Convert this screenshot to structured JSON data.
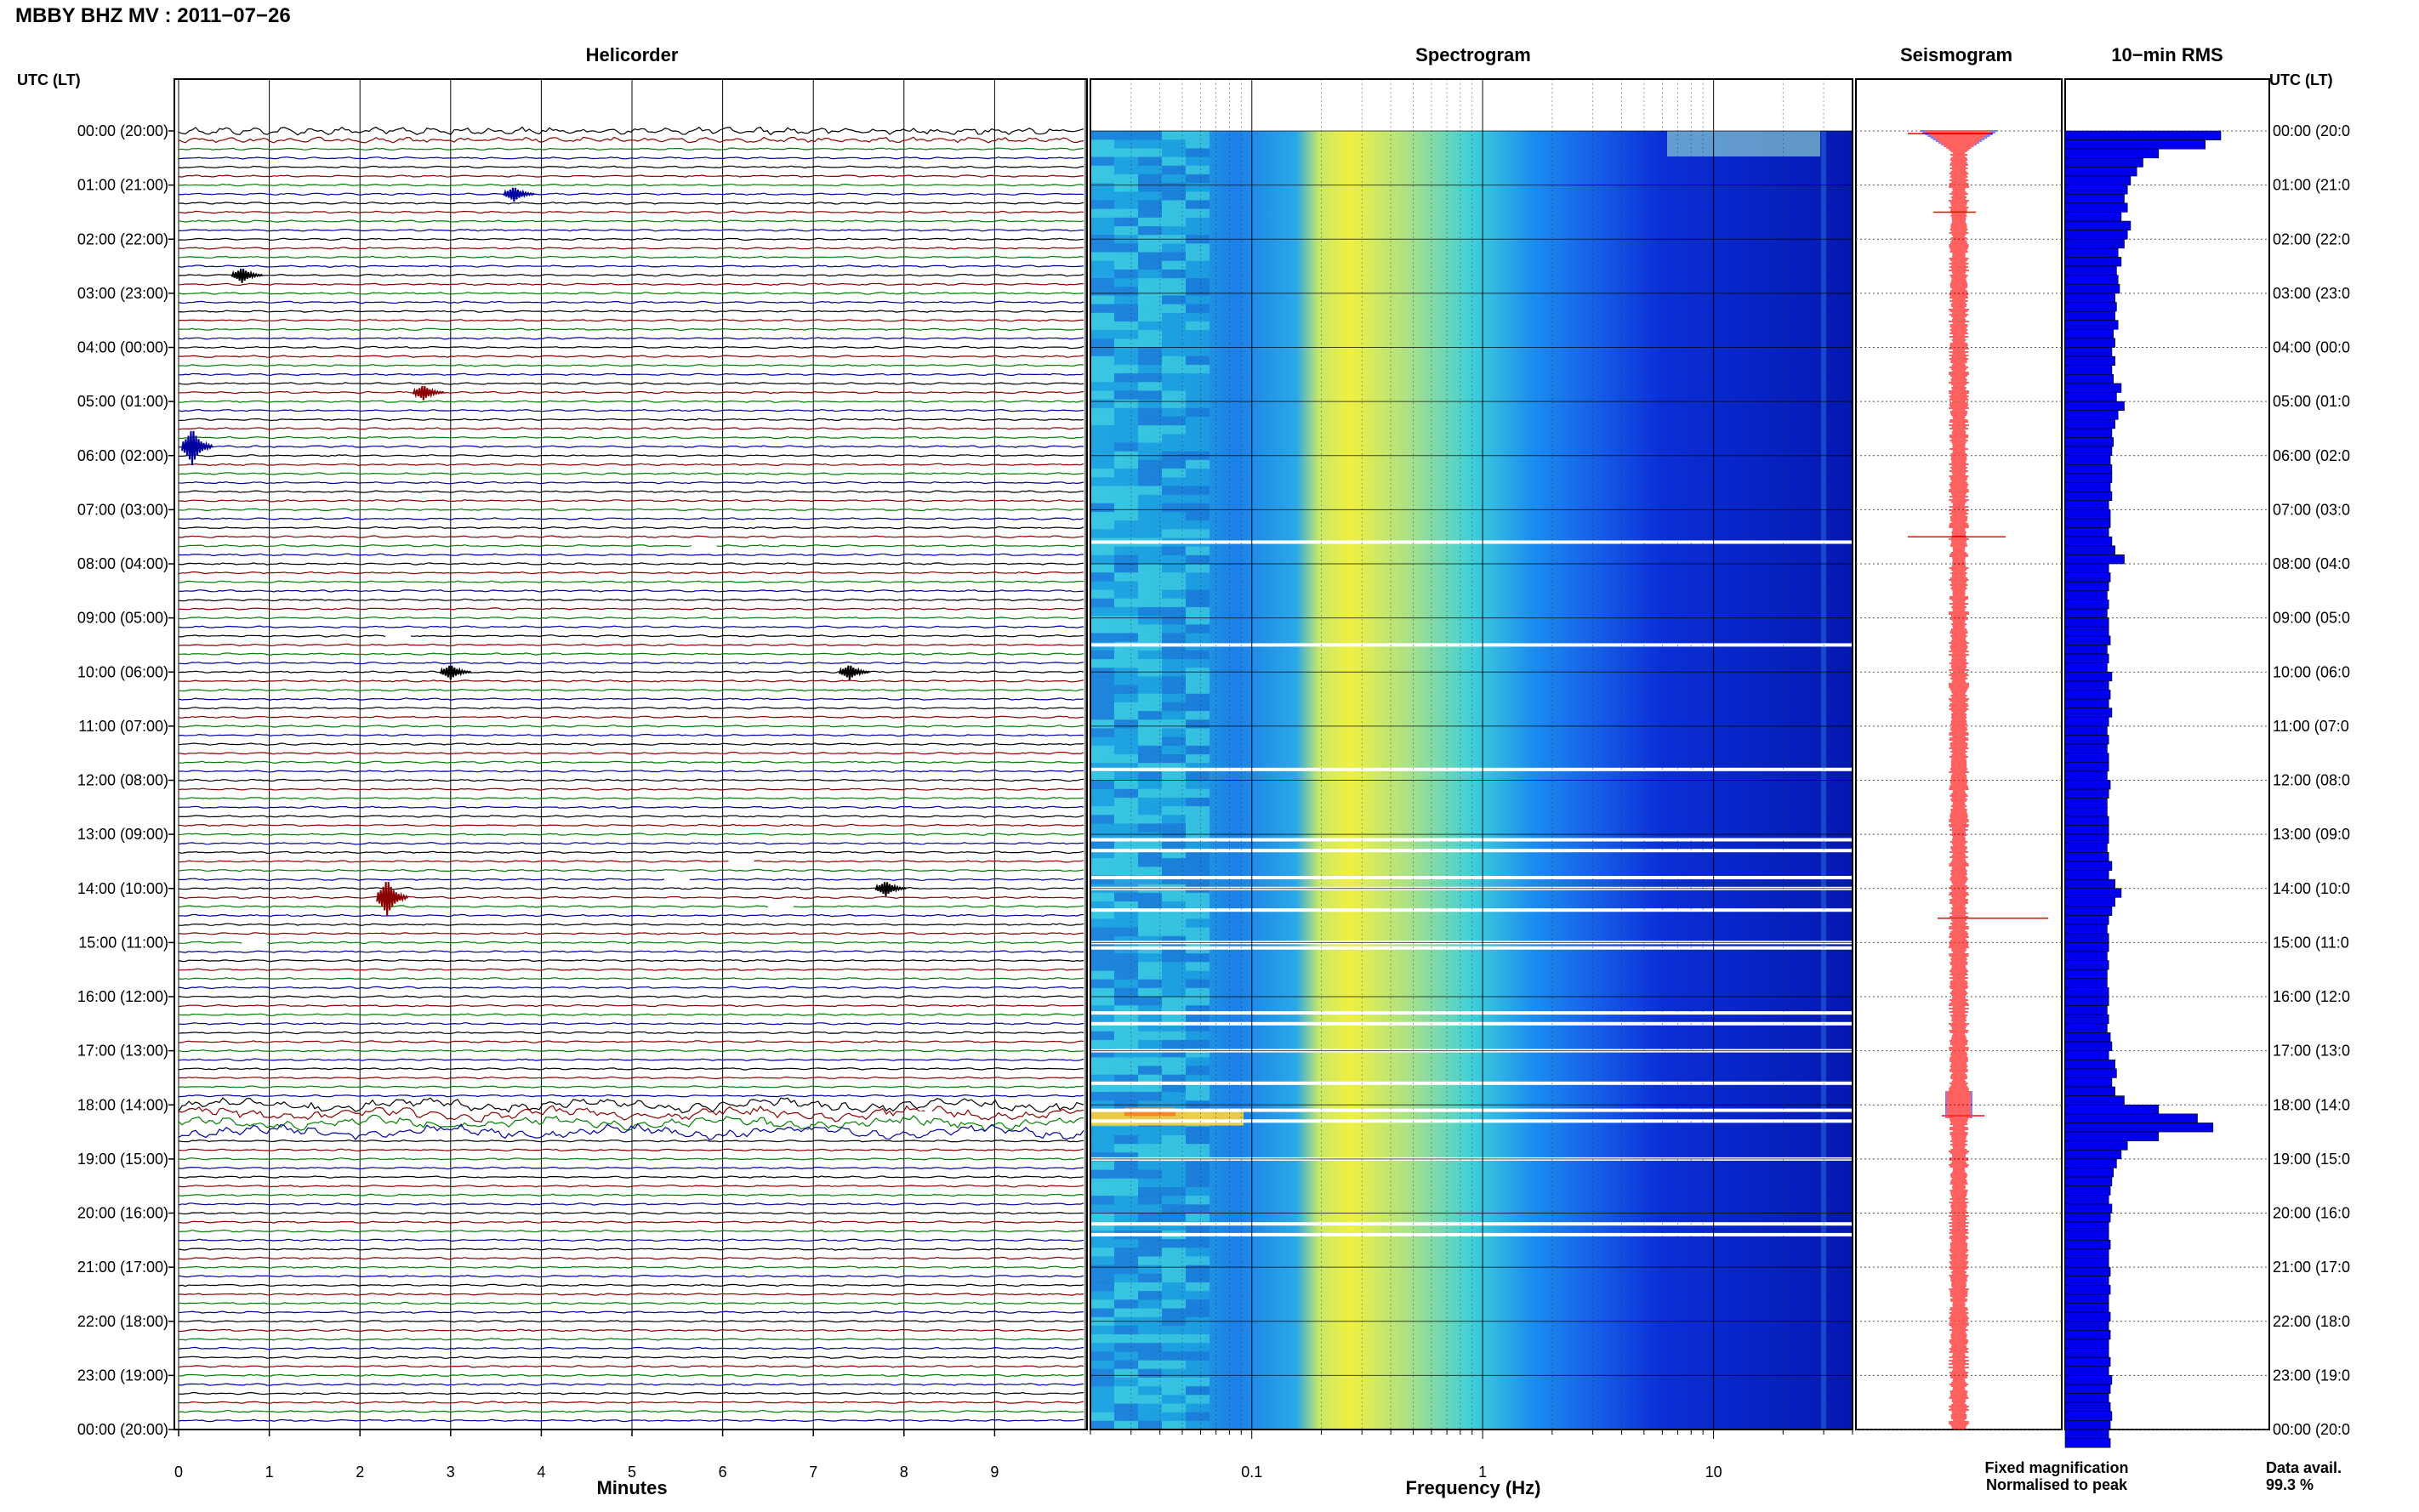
{
  "header": {
    "title": "MBBY BHZ MV : 2011−07−26",
    "utc_label_left": "UTC (LT)",
    "utc_label_right": "UTC (LT)"
  },
  "panels": {
    "helicorder": "Helicorder",
    "spectrogram": "Spectrogram",
    "seismogram": "Seismogram",
    "rms": "10−min RMS"
  },
  "time_labels": [
    "00:00 (20:00)",
    "01:00 (21:00)",
    "02:00 (22:00)",
    "03:00 (23:00)",
    "04:00 (00:00)",
    "05:00 (01:00)",
    "06:00 (02:00)",
    "07:00 (03:00)",
    "08:00 (04:00)",
    "09:00 (05:00)",
    "10:00 (06:00)",
    "11:00 (07:00)",
    "12:00 (08:00)",
    "13:00 (09:00)",
    "14:00 (10:00)",
    "15:00 (11:00)",
    "16:00 (12:00)",
    "17:00 (13:00)",
    "18:00 (14:00)",
    "19:00 (15:00)",
    "20:00 (16:00)",
    "21:00 (17:00)",
    "22:00 (18:00)",
    "23:00 (19:00)",
    "00:00 (20:00)"
  ],
  "time_labels_right": [
    "00:00 (20:0",
    "01:00 (21:0",
    "02:00 (22:0",
    "03:00 (23:0",
    "04:00 (00:0",
    "05:00 (01:0",
    "06:00 (02:0",
    "07:00 (03:0",
    "08:00 (04:0",
    "09:00 (05:0",
    "10:00 (06:0",
    "11:00 (07:0",
    "12:00 (08:0",
    "13:00 (09:0",
    "14:00 (10:0",
    "15:00 (11:0",
    "16:00 (12:0",
    "17:00 (13:0",
    "18:00 (14:0",
    "19:00 (15:0",
    "20:00 (16:0",
    "21:00 (17:0",
    "22:00 (18:0",
    "23:00 (19:0",
    "00:00 (20:0"
  ],
  "legend": {
    "fixed": "Fixed magnification",
    "normalised": "Normalised to peak",
    "fixed_color": "#0000ff",
    "normalised_color": "#ff0000"
  },
  "data_avail": {
    "label": "Data avail.",
    "value": "99.3 %"
  },
  "chart_data": [
    {
      "type": "line",
      "title": "Helicorder",
      "xlabel": "Minutes",
      "x_ticks": [
        "0",
        "1",
        "2",
        "3",
        "4",
        "5",
        "6",
        "7",
        "8",
        "9"
      ],
      "xlim": [
        0,
        10
      ],
      "ylabel": "UTC (LT)",
      "traces_per_hour": 6,
      "trace_colors": [
        "#000000",
        "#8b0000",
        "#008000",
        "#0000a0"
      ],
      "events": [
        {
          "trace": 7,
          "minute": 3.7
        },
        {
          "trace": 16,
          "minute": 0.7
        },
        {
          "trace": 29,
          "minute": 2.7
        },
        {
          "trace": 35,
          "minute": 0.15
        },
        {
          "trace": 60,
          "minute": 3.0
        },
        {
          "trace": 60,
          "minute": 7.4
        },
        {
          "trace": 84,
          "minute": 7.8
        },
        {
          "trace": 85,
          "minute": 2.3
        }
      ],
      "quiet_gap_hours": [
        7.6,
        9.3,
        13.5,
        13.8,
        14.3,
        15.0,
        18.2
      ]
    },
    {
      "type": "heatmap",
      "title": "Spectrogram",
      "xlabel": "Frequency (Hz)",
      "x_ticks": [
        "0.1",
        "1",
        "10"
      ],
      "x_scale": "log",
      "xlim": [
        0.02,
        40
      ],
      "colormap": [
        "#00008b",
        "#0000ff",
        "#0080ff",
        "#00ffff",
        "#80ff80",
        "#ffff00",
        "#ff8000"
      ],
      "energy_peak_hz": [
        0.2,
        0.5
      ],
      "data_gap_hours": [
        7.6,
        9.5,
        11.8,
        13.1,
        13.3,
        13.8,
        14.0,
        14.4,
        15.0,
        15.1,
        16.3,
        16.5,
        17.0,
        17.6,
        18.1,
        18.3,
        19.0,
        20.2,
        20.4
      ]
    },
    {
      "type": "line",
      "title": "Seismogram",
      "series": [
        {
          "name": "Fixed magnification",
          "color": "#0000ff"
        },
        {
          "name": "Normalised to peak",
          "color": "#ff0000"
        }
      ]
    },
    {
      "type": "bar",
      "title": "10−min RMS",
      "orientation": "horizontal",
      "bin_minutes": 10,
      "values": [
        1.0,
        0.9,
        0.6,
        0.5,
        0.46,
        0.42,
        0.4,
        0.38,
        0.4,
        0.36,
        0.42,
        0.4,
        0.38,
        0.34,
        0.36,
        0.33,
        0.34,
        0.35,
        0.32,
        0.33,
        0.32,
        0.34,
        0.31,
        0.32,
        0.3,
        0.32,
        0.3,
        0.31,
        0.36,
        0.33,
        0.38,
        0.34,
        0.32,
        0.3,
        0.31,
        0.3,
        0.29,
        0.3,
        0.3,
        0.29,
        0.3,
        0.28,
        0.29,
        0.29,
        0.28,
        0.3,
        0.32,
        0.38,
        0.28,
        0.29,
        0.28,
        0.27,
        0.28,
        0.27,
        0.28,
        0.28,
        0.29,
        0.27,
        0.28,
        0.27,
        0.3,
        0.28,
        0.29,
        0.28,
        0.3,
        0.28,
        0.27,
        0.28,
        0.27,
        0.28,
        0.28,
        0.27,
        0.29,
        0.28,
        0.27,
        0.27,
        0.28,
        0.28,
        0.28,
        0.27,
        0.28,
        0.3,
        0.28,
        0.32,
        0.36,
        0.32,
        0.3,
        0.28,
        0.27,
        0.28,
        0.28,
        0.27,
        0.28,
        0.27,
        0.27,
        0.28,
        0.28,
        0.27,
        0.28,
        0.27,
        0.29,
        0.3,
        0.28,
        0.32,
        0.33,
        0.3,
        0.32,
        0.38,
        0.6,
        0.85,
        0.95,
        0.6,
        0.4,
        0.36,
        0.33,
        0.31,
        0.3,
        0.29,
        0.28,
        0.3,
        0.29,
        0.28,
        0.28,
        0.29,
        0.28,
        0.28,
        0.29,
        0.28,
        0.29,
        0.28,
        0.28,
        0.29,
        0.28,
        0.29,
        0.28,
        0.28,
        0.29,
        0.28,
        0.3,
        0.29,
        0.28,
        0.29,
        0.3,
        0.29,
        0.28,
        0.29
      ]
    }
  ]
}
